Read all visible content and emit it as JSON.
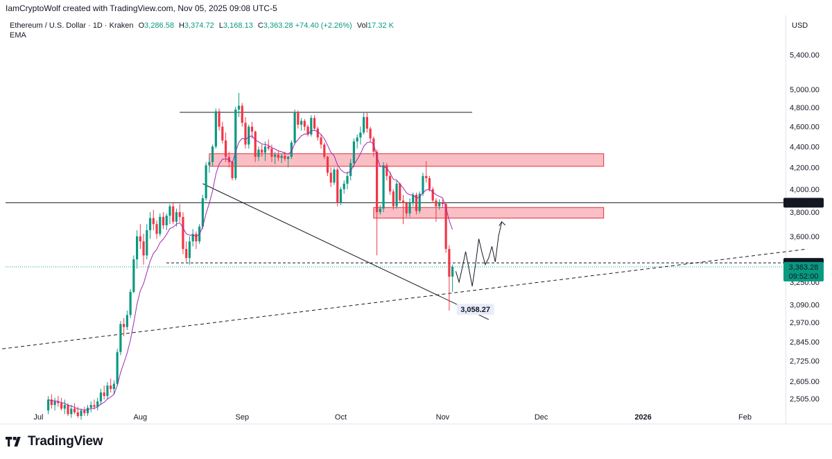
{
  "header": {
    "credit": "IamCryptoWolf created with TradingView.com, Nov 05, 2025 09:08 UTC-5"
  },
  "legend": {
    "symbol": "Ethereum / U.S. Dollar · 1D · Kraken",
    "open_label": "O",
    "open": "3,286.58",
    "high_label": "H",
    "high": "3,374.72",
    "low_label": "L",
    "low": "3,168.13",
    "close_label": "C",
    "close": "3,363.28",
    "change": "+74.40 (+2.26%)",
    "vol_label": "Vol",
    "vol": "17.32 K",
    "indicator": "EMA"
  },
  "footer": {
    "brand": "TradingView"
  },
  "colors": {
    "up": "#089981",
    "down": "#f23645",
    "ema": "#9c27b0",
    "zone_fill": "#f7a9b0",
    "zone_stroke": "#e0303c",
    "price_tag": "#089981",
    "level_tag": "#131722"
  },
  "chart_data": {
    "type": "candlestick",
    "title": "Ethereum / U.S. Dollar · 1D · Kraken",
    "currency_label": "USD",
    "y_scale": "log",
    "ylim": [
      2440,
      6000
    ],
    "y_ticks": [
      "5,400.00",
      "5,000.00",
      "4,800.00",
      "4,600.00",
      "4,400.00",
      "4,200.00",
      "4,000.00",
      "3,800.00",
      "3,600.00",
      "3,250.00",
      "3,090.00",
      "2,970.00",
      "2,845.00",
      "2,725.00",
      "2,605.00",
      "2,505.00"
    ],
    "x_ticks": [
      "Jul",
      "Aug",
      "Sep",
      "Oct",
      "Nov",
      "Dec",
      "2026",
      "Feb"
    ],
    "date_range": [
      "2025-06-21",
      "2026-02-20"
    ],
    "levels": [
      {
        "label": "3,880.98",
        "value": 3880.98,
        "style": "solid"
      },
      {
        "label": "3,392.97",
        "value": 3392.97,
        "style": "dashed"
      }
    ],
    "last_price": {
      "label": "3,363.28",
      "value": 3363.28,
      "countdown": "09:52:00"
    },
    "low_marker": {
      "label": "3,058.27",
      "value": 3058.27,
      "date": "2025-11-04"
    },
    "zones": [
      {
        "from": "2025-08-22",
        "to": "2025-12-20",
        "top": 4330,
        "bottom": 4210
      },
      {
        "from": "2025-10-11",
        "to": "2025-12-20",
        "top": 3840,
        "bottom": 3750
      }
    ],
    "lines": [
      {
        "name": "resistance",
        "from": [
          "2025-08-13",
          4750
        ],
        "to": [
          "2025-11-10",
          4750
        ],
        "style": "solid"
      },
      {
        "name": "falling trendline",
        "from": [
          "2025-08-20",
          4050
        ],
        "to": [
          "2025-11-15",
          2990
        ],
        "style": "solid"
      },
      {
        "name": "rising trendline",
        "from": [
          "2025-06-20",
          2800
        ],
        "to": [
          "2026-02-20",
          3500
        ],
        "style": "dashed"
      }
    ],
    "projection": [
      [
        "2025-11-05",
        3330
      ],
      [
        "2025-11-06",
        3250
      ],
      [
        "2025-11-07",
        3360
      ],
      [
        "2025-11-08",
        3480
      ],
      [
        "2025-11-09",
        3350
      ],
      [
        "2025-11-10",
        3220
      ],
      [
        "2025-11-11",
        3380
      ],
      [
        "2025-11-12",
        3580
      ],
      [
        "2025-11-13",
        3470
      ],
      [
        "2025-11-14",
        3380
      ],
      [
        "2025-11-15",
        3430
      ],
      [
        "2025-11-16",
        3520
      ],
      [
        "2025-11-17",
        3400
      ],
      [
        "2025-11-18",
        3600
      ],
      [
        "2025-11-19",
        3720
      ]
    ],
    "candles_ohlc": [
      [
        2440,
        2520,
        2420,
        2500
      ],
      [
        2500,
        2530,
        2450,
        2470
      ],
      [
        2470,
        2510,
        2440,
        2490
      ],
      [
        2490,
        2520,
        2460,
        2480
      ],
      [
        2480,
        2510,
        2440,
        2450
      ],
      [
        2450,
        2500,
        2420,
        2470
      ],
      [
        2470,
        2480,
        2410,
        2420
      ],
      [
        2420,
        2470,
        2400,
        2450
      ],
      [
        2450,
        2480,
        2420,
        2430
      ],
      [
        2430,
        2460,
        2400,
        2410
      ],
      [
        2410,
        2450,
        2390,
        2440
      ],
      [
        2440,
        2460,
        2410,
        2425
      ],
      [
        2425,
        2470,
        2410,
        2455
      ],
      [
        2455,
        2490,
        2430,
        2470
      ],
      [
        2470,
        2500,
        2445,
        2460
      ],
      [
        2460,
        2510,
        2440,
        2490
      ],
      [
        2490,
        2560,
        2470,
        2540
      ],
      [
        2540,
        2580,
        2500,
        2520
      ],
      [
        2520,
        2600,
        2500,
        2580
      ],
      [
        2580,
        2620,
        2540,
        2560
      ],
      [
        2560,
        2610,
        2530,
        2590
      ],
      [
        2590,
        2800,
        2580,
        2780
      ],
      [
        2780,
        2980,
        2760,
        2960
      ],
      [
        2960,
        3000,
        2880,
        2940
      ],
      [
        2940,
        3050,
        2920,
        3020
      ],
      [
        3020,
        3200,
        3000,
        3180
      ],
      [
        3180,
        3450,
        3170,
        3420
      ],
      [
        3420,
        3650,
        3350,
        3600
      ],
      [
        3600,
        3700,
        3500,
        3560
      ],
      [
        3560,
        3620,
        3380,
        3450
      ],
      [
        3450,
        3700,
        3420,
        3650
      ],
      [
        3650,
        3800,
        3580,
        3750
      ],
      [
        3750,
        3820,
        3650,
        3700
      ],
      [
        3700,
        3730,
        3580,
        3620
      ],
      [
        3620,
        3790,
        3600,
        3760
      ],
      [
        3760,
        3800,
        3660,
        3690
      ],
      [
        3690,
        3790,
        3650,
        3770
      ],
      [
        3770,
        3870,
        3700,
        3850
      ],
      [
        3850,
        3880,
        3700,
        3720
      ],
      [
        3720,
        3830,
        3680,
        3800
      ],
      [
        3800,
        3870,
        3720,
        3760
      ],
      [
        3760,
        3800,
        3460,
        3500
      ],
      [
        3500,
        3560,
        3400,
        3430
      ],
      [
        3430,
        3600,
        3380,
        3560
      ],
      [
        3560,
        3660,
        3520,
        3620
      ],
      [
        3620,
        3640,
        3500,
        3560
      ],
      [
        3560,
        3700,
        3540,
        3680
      ],
      [
        3680,
        3950,
        3660,
        3920
      ],
      [
        3920,
        4250,
        3900,
        4220
      ],
      [
        4220,
        4290,
        4150,
        4250
      ],
      [
        4250,
        4420,
        4210,
        4400
      ],
      [
        4400,
        4790,
        4380,
        4760
      ],
      [
        4760,
        4790,
        4560,
        4600
      ],
      [
        4600,
        4650,
        4430,
        4460
      ],
      [
        4460,
        4540,
        4250,
        4300
      ],
      [
        4300,
        4350,
        4200,
        4250
      ],
      [
        4250,
        4260,
        4080,
        4100
      ],
      [
        4100,
        4810,
        4080,
        4780
      ],
      [
        4780,
        4960,
        4700,
        4820
      ],
      [
        4820,
        4850,
        4600,
        4640
      ],
      [
        4640,
        4700,
        4380,
        4420
      ],
      [
        4420,
        4620,
        4380,
        4600
      ],
      [
        4600,
        4650,
        4480,
        4550
      ],
      [
        4550,
        4560,
        4250,
        4300
      ],
      [
        4300,
        4400,
        4260,
        4370
      ],
      [
        4370,
        4420,
        4300,
        4340
      ],
      [
        4340,
        4450,
        4260,
        4400
      ],
      [
        4400,
        4470,
        4360,
        4380
      ],
      [
        4380,
        4420,
        4250,
        4300
      ],
      [
        4300,
        4350,
        4230,
        4320
      ],
      [
        4320,
        4360,
        4260,
        4290
      ],
      [
        4290,
        4330,
        4240,
        4310
      ],
      [
        4310,
        4350,
        4260,
        4280
      ],
      [
        4280,
        4310,
        4200,
        4300
      ],
      [
        4300,
        4460,
        4280,
        4440
      ],
      [
        4440,
        4780,
        4420,
        4750
      ],
      [
        4750,
        4770,
        4580,
        4620
      ],
      [
        4620,
        4690,
        4560,
        4660
      ],
      [
        4660,
        4680,
        4560,
        4600
      ],
      [
        4600,
        4620,
        4500,
        4520
      ],
      [
        4520,
        4720,
        4500,
        4690
      ],
      [
        4690,
        4720,
        4560,
        4580
      ],
      [
        4580,
        4600,
        4460,
        4490
      ],
      [
        4490,
        4520,
        4380,
        4420
      ],
      [
        4420,
        4440,
        4280,
        4300
      ],
      [
        4300,
        4310,
        4120,
        4150
      ],
      [
        4150,
        4200,
        4020,
        4060
      ],
      [
        4060,
        4200,
        4040,
        4180
      ],
      [
        4180,
        4200,
        3850,
        3880
      ],
      [
        3880,
        4020,
        3860,
        4000
      ],
      [
        4000,
        4080,
        3960,
        4050
      ],
      [
        4050,
        4160,
        4000,
        4120
      ],
      [
        4120,
        4280,
        4080,
        4240
      ],
      [
        4240,
        4480,
        4200,
        4450
      ],
      [
        4450,
        4520,
        4380,
        4490
      ],
      [
        4490,
        4600,
        4420,
        4540
      ],
      [
        4540,
        4750,
        4520,
        4700
      ],
      [
        4700,
        4750,
        4540,
        4580
      ],
      [
        4580,
        4600,
        4440,
        4480
      ],
      [
        4480,
        4500,
        4300,
        4350
      ],
      [
        4350,
        4370,
        3450,
        3800
      ],
      [
        3800,
        3860,
        3780,
        3830
      ],
      [
        3830,
        4250,
        3800,
        4220
      ],
      [
        4220,
        4240,
        4080,
        4120
      ],
      [
        4120,
        4160,
        3950,
        3980
      ],
      [
        3980,
        4000,
        3820,
        3850
      ],
      [
        3850,
        4080,
        3830,
        4050
      ],
      [
        4050,
        4060,
        3880,
        3900
      ],
      [
        3900,
        3950,
        3700,
        3880
      ],
      [
        3880,
        3890,
        3760,
        3790
      ],
      [
        3790,
        3920,
        3760,
        3880
      ],
      [
        3880,
        3970,
        3850,
        3950
      ],
      [
        3950,
        3970,
        3780,
        3810
      ],
      [
        3810,
        3980,
        3790,
        3960
      ],
      [
        3960,
        4150,
        3940,
        4120
      ],
      [
        4120,
        4260,
        4060,
        4100
      ],
      [
        4100,
        4120,
        3980,
        4000
      ],
      [
        4000,
        4020,
        3880,
        3900
      ],
      [
        3900,
        3920,
        3720,
        3850
      ],
      [
        3850,
        3910,
        3820,
        3880
      ],
      [
        3880,
        3910,
        3840,
        3870
      ],
      [
        3870,
        3880,
        3470,
        3500
      ],
      [
        3500,
        3530,
        3050,
        3290
      ],
      [
        3290,
        3380,
        3180,
        3363
      ]
    ]
  }
}
